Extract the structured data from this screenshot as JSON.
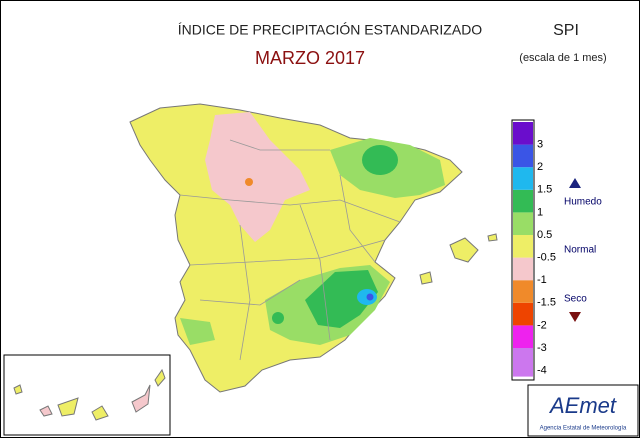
{
  "header": {
    "title": "ÍNDICE DE PRECIPITACIÓN ESTANDARIZADO",
    "subtitle": "MARZO 2017",
    "index": "SPI",
    "scale": "(escala de 1 mes)"
  },
  "legend": {
    "items": [
      {
        "label": "3",
        "color": "#6a0dcc"
      },
      {
        "label": "2",
        "color": "#3a55e6"
      },
      {
        "label": "1.5",
        "color": "#1fb8ee"
      },
      {
        "label": "1",
        "color": "#33bb55"
      },
      {
        "label": "0.5",
        "color": "#99dd66"
      },
      {
        "label": "-0.5",
        "color": "#eeee66"
      },
      {
        "label": "-1",
        "color": "#f5c8cc"
      },
      {
        "label": "-1.5",
        "color": "#f08a2a"
      },
      {
        "label": "-2",
        "color": "#ee4400"
      },
      {
        "label": "-3",
        "color": "#ee22ee"
      },
      {
        "label": "-4",
        "color": "#cc77ee"
      }
    ],
    "wet": "Humedo",
    "normal": "Normal",
    "dry": "Seco"
  },
  "logo": {
    "name": "AEmet",
    "agency": "Agencia Estatal de Meteorología"
  }
}
